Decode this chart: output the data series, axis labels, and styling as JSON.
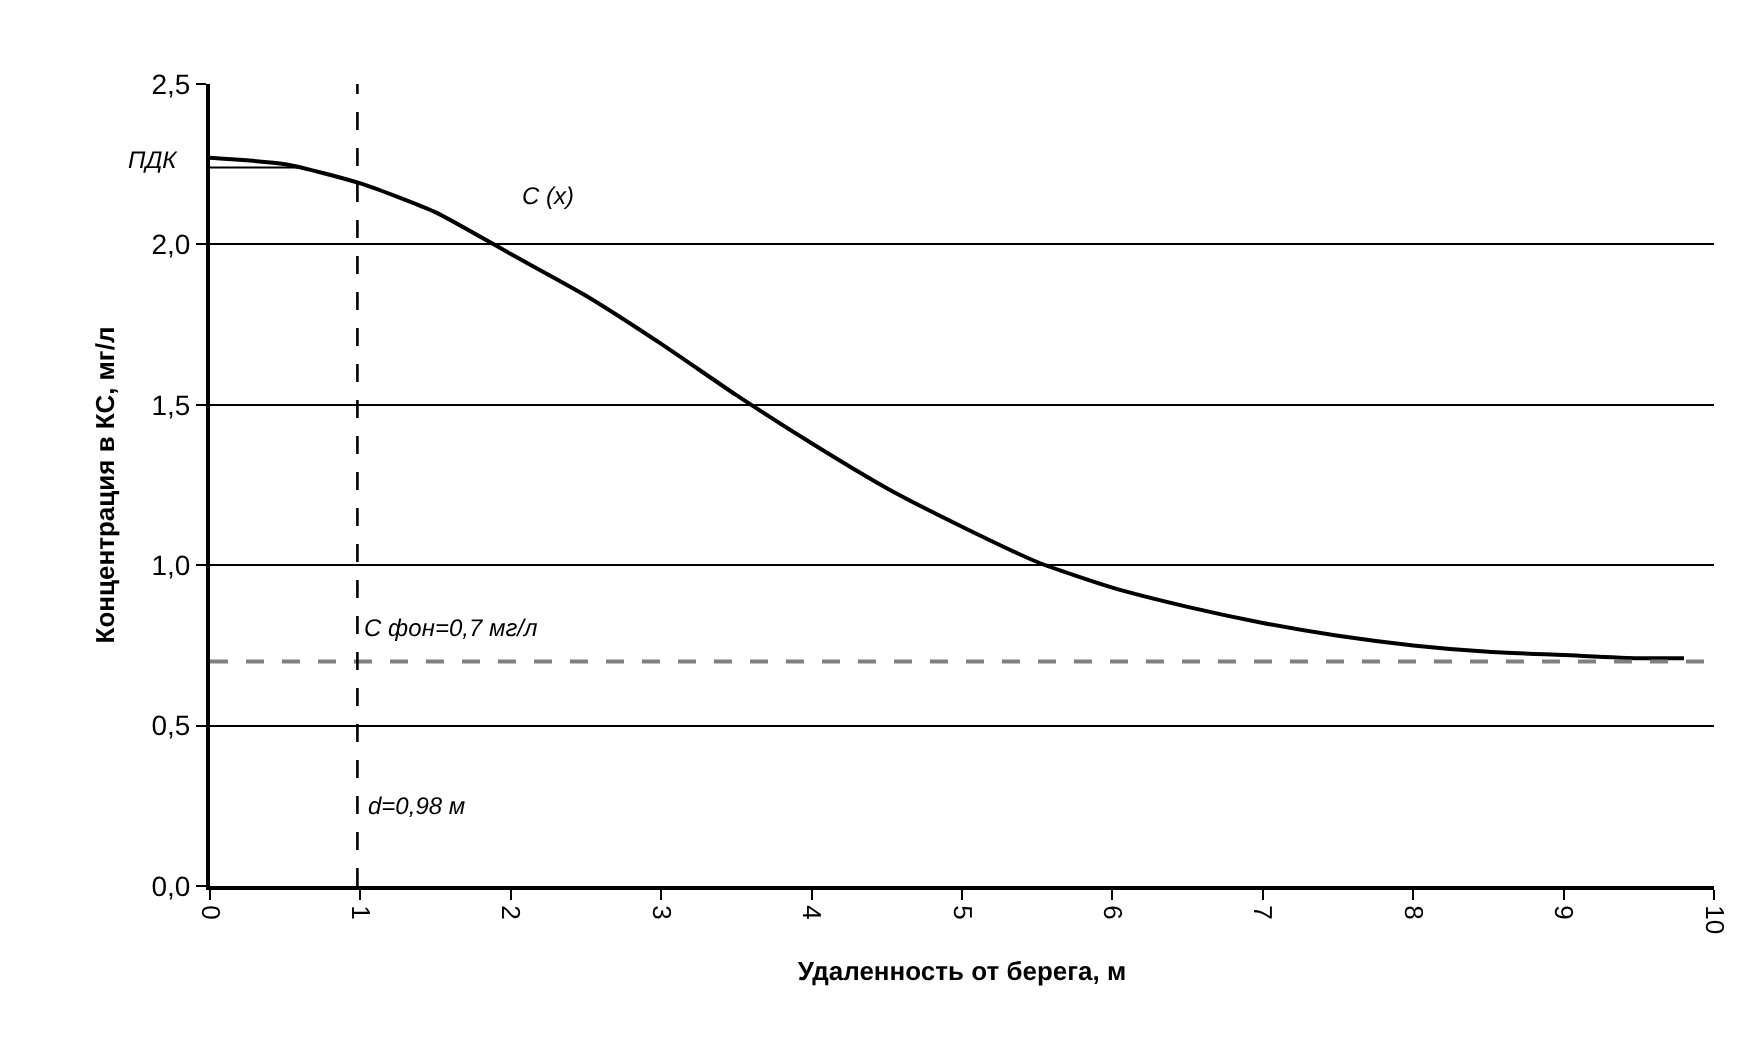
{
  "chart_data": {
    "type": "line",
    "xlabel": "Удаленность от берега, м",
    "ylabel": "Концентрация в КС, мг/л",
    "series": [
      {
        "name": "C (x)",
        "color": "#000000",
        "x": [
          0,
          0.5,
          1,
          1.5,
          2,
          2.5,
          3,
          3.5,
          4,
          4.5,
          5,
          5.5,
          6,
          6.5,
          7,
          7.5,
          8,
          8.5,
          9,
          9.5,
          9.8
        ],
        "values": [
          2.27,
          2.25,
          2.19,
          2.1,
          1.97,
          1.84,
          1.69,
          1.53,
          1.38,
          1.24,
          1.12,
          1.01,
          0.93,
          0.87,
          0.82,
          0.78,
          0.75,
          0.73,
          0.72,
          0.71,
          0.71
        ]
      },
      {
        "name": "ПДК",
        "color": "#000000",
        "x": [
          0,
          0.6
        ],
        "values": [
          2.24,
          2.24
        ]
      }
    ],
    "ref_lines": [
      {
        "axis": "y",
        "value": 0.7,
        "label": "C фон=0,7 мг/л",
        "color": "#808080",
        "line_style": "dashed"
      },
      {
        "axis": "x",
        "value": 0.98,
        "label": "d=0,98 м",
        "color": "#000000",
        "line_style": "dashed"
      }
    ],
    "xlim": [
      0,
      10
    ],
    "xticks": [
      0,
      1,
      2,
      3,
      4,
      5,
      6,
      7,
      8,
      9,
      10
    ],
    "ylim": [
      0,
      2.5
    ],
    "yticks": [
      {
        "value": 0,
        "label": "0,0"
      },
      {
        "value": 0.5,
        "label": "0,5"
      },
      {
        "value": 1.0,
        "label": "1,0"
      },
      {
        "value": 1.5,
        "label": "1,5"
      },
      {
        "value": 2.0,
        "label": "2,0"
      },
      {
        "value": 2.5,
        "label": "2,5"
      }
    ],
    "grid": "y",
    "legend": false,
    "marker": "none"
  }
}
